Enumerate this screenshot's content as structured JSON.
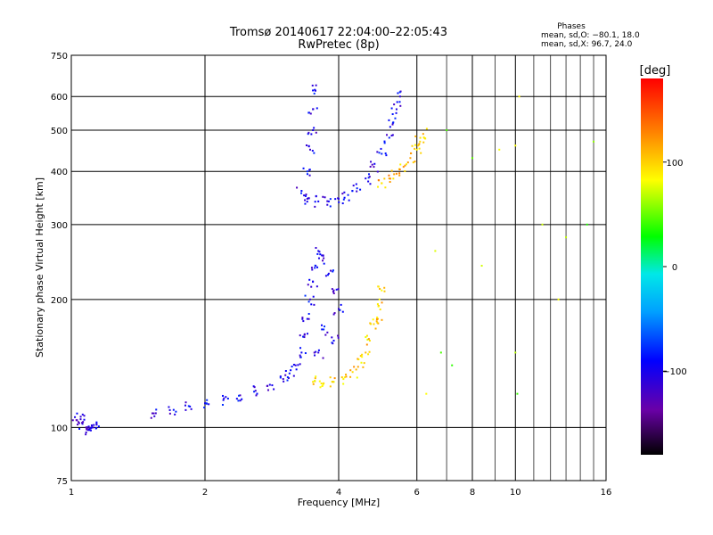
{
  "chart_data": {
    "type": "scatter",
    "title": "Tromsø 20140617 22:04:00–22:05:43",
    "subtitle": "RwPretec (8p)",
    "xlabel": "Frequency [MHz]",
    "ylabel": "Stationary phase Virtual Height [km]",
    "xscale": "log",
    "yscale": "log",
    "xlim": [
      1,
      16
    ],
    "ylim": [
      75,
      750
    ],
    "xticks": [
      1,
      2,
      4,
      6,
      8,
      10,
      16
    ],
    "xtick_labels": [
      "1",
      "2",
      "4",
      "6",
      "8",
      "10",
      "16"
    ],
    "x_minor_gridlines": [
      7,
      9,
      11,
      12,
      13,
      14,
      15
    ],
    "yticks": [
      75,
      100,
      200,
      300,
      400,
      500,
      600,
      750
    ],
    "ytick_labels": [
      "75",
      "100",
      "200",
      "300",
      "400",
      "500",
      "600",
      "750"
    ],
    "grid": true,
    "phase_info": {
      "heading": "Phases",
      "line_o": "mean, sd,O: −80.1, 18.0",
      "line_x": "mean, sd,X:  96.7, 24.0"
    },
    "colorbar": {
      "label": "[deg]",
      "min": -180,
      "max": 180,
      "ticks": [
        100,
        0,
        -100
      ],
      "tick_labels": [
        "100",
        "0",
        "−100"
      ],
      "colormap": [
        "#000000",
        "#6a00a8",
        "#0000ff",
        "#00a0ff",
        "#00e8e8",
        "#00ff00",
        "#ffff00",
        "#ff8000",
        "#ff0000"
      ]
    },
    "clusters": [
      {
        "name": "lowest-trace",
        "phase": -110,
        "points": [
          [
            1.03,
            104
          ],
          [
            1.06,
            102
          ],
          [
            1.08,
            100
          ],
          [
            1.1,
            99
          ],
          [
            1.12,
            100
          ],
          [
            1.14,
            102
          ],
          [
            1.05,
            106
          ]
        ]
      },
      {
        "name": "o-trace-low",
        "phase": -100,
        "points": [
          [
            1.55,
            108
          ],
          [
            1.7,
            110
          ],
          [
            1.85,
            112
          ],
          [
            2.0,
            114
          ],
          [
            2.2,
            116
          ],
          [
            2.4,
            119
          ],
          [
            2.6,
            122
          ],
          [
            2.8,
            126
          ],
          [
            3.0,
            130
          ],
          [
            3.1,
            134
          ],
          [
            3.2,
            140
          ],
          [
            3.3,
            150
          ],
          [
            3.35,
            165
          ],
          [
            3.4,
            180
          ],
          [
            3.45,
            200
          ],
          [
            3.5,
            220
          ],
          [
            3.55,
            240
          ],
          [
            3.6,
            260
          ],
          [
            3.7,
            250
          ],
          [
            3.8,
            230
          ],
          [
            3.9,
            210
          ],
          [
            4.0,
            190
          ],
          [
            3.6,
            150
          ],
          [
            3.7,
            170
          ],
          [
            3.9,
            160
          ]
        ]
      },
      {
        "name": "x-trace-low",
        "phase": 100,
        "points": [
          [
            3.5,
            128
          ],
          [
            3.7,
            127
          ],
          [
            3.9,
            128
          ],
          [
            4.1,
            130
          ],
          [
            4.3,
            135
          ],
          [
            4.5,
            142
          ],
          [
            4.6,
            150
          ],
          [
            4.7,
            160
          ],
          [
            4.8,
            175
          ],
          [
            4.9,
            195
          ],
          [
            5.0,
            210
          ],
          [
            4.9,
            180
          ]
        ]
      },
      {
        "name": "o-trace-high",
        "phase": -100,
        "points": [
          [
            3.3,
            360
          ],
          [
            3.4,
            345
          ],
          [
            3.6,
            340
          ],
          [
            3.8,
            340
          ],
          [
            4.0,
            345
          ],
          [
            4.2,
            352
          ],
          [
            4.4,
            365
          ],
          [
            4.6,
            385
          ],
          [
            4.8,
            410
          ],
          [
            5.0,
            440
          ],
          [
            5.2,
            480
          ],
          [
            5.3,
            520
          ],
          [
            5.4,
            560
          ],
          [
            5.5,
            600
          ],
          [
            3.4,
            400
          ],
          [
            3.45,
            450
          ],
          [
            3.5,
            500
          ],
          [
            3.5,
            560
          ],
          [
            3.5,
            620
          ]
        ]
      },
      {
        "name": "x-trace-high",
        "phase": 110,
        "points": [
          [
            5.0,
            375
          ],
          [
            5.2,
            385
          ],
          [
            5.4,
            395
          ],
          [
            5.6,
            410
          ],
          [
            5.8,
            430
          ],
          [
            6.0,
            450
          ],
          [
            6.1,
            470
          ],
          [
            6.2,
            490
          ]
        ]
      },
      {
        "name": "scattered-points",
        "phase": 60,
        "points": [
          [
            7.0,
            500
          ],
          [
            8.0,
            430
          ],
          [
            9.2,
            450
          ],
          [
            10.0,
            460
          ],
          [
            10.2,
            600
          ],
          [
            11.5,
            300
          ],
          [
            12.5,
            200
          ],
          [
            13.0,
            280
          ],
          [
            14.5,
            300
          ],
          [
            15.0,
            470
          ],
          [
            6.6,
            260
          ],
          [
            6.8,
            150
          ],
          [
            7.2,
            140
          ],
          [
            8.4,
            240
          ],
          [
            10.0,
            150
          ],
          [
            10.1,
            120
          ],
          [
            6.3,
            120
          ]
        ]
      }
    ]
  }
}
